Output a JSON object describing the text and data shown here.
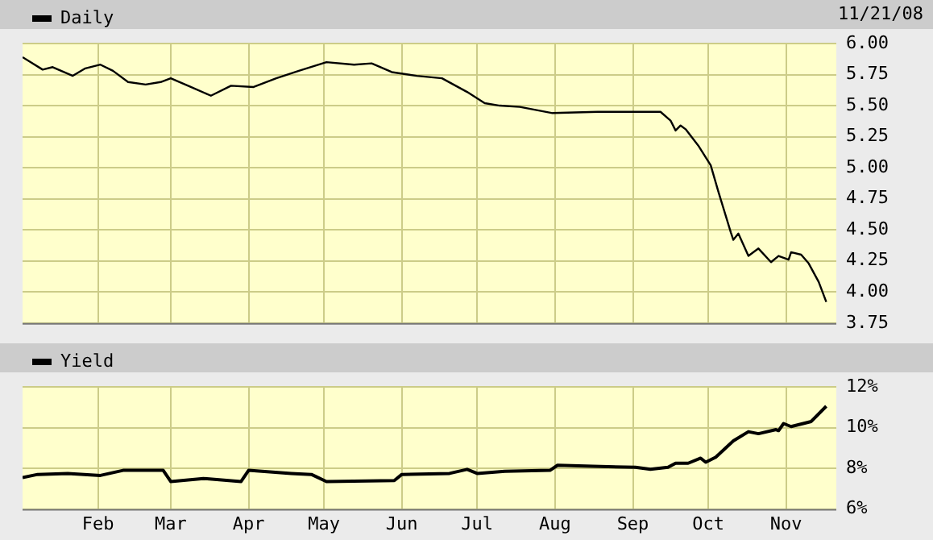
{
  "chart_data": [
    {
      "type": "line",
      "legend": "top left",
      "grid": true,
      "marker": "none",
      "line_style": "solid",
      "tick_labels": "y",
      "annotations": [
        "11/21/08"
      ],
      "xlim": [
        "--01-02",
        "--11-21"
      ],
      "xticks": [
        {
          "value": "--02-01",
          "label": null
        },
        {
          "value": "--03-01",
          "label": null
        },
        {
          "value": "--04-01",
          "label": null
        },
        {
          "value": "--05-01",
          "label": null
        },
        {
          "value": "--06-01",
          "label": null
        },
        {
          "value": "--07-01",
          "label": null
        },
        {
          "value": "--08-01",
          "label": null
        },
        {
          "value": "--09-01",
          "label": null
        },
        {
          "value": "--10-01",
          "label": null
        },
        {
          "value": "--11-01",
          "label": null
        }
      ],
      "ylim": [
        3.75,
        6
      ],
      "yticks": [
        {
          "value": 3.75,
          "label": "3.75"
        },
        {
          "value": 4,
          "label": "4.00"
        },
        {
          "value": 4.25,
          "label": "4.25"
        },
        {
          "value": 4.5,
          "label": "4.50"
        },
        {
          "value": 4.75,
          "label": "4.75"
        },
        {
          "value": 5,
          "label": "5.00"
        },
        {
          "value": 5.25,
          "label": "5.25"
        },
        {
          "value": 5.5,
          "label": "5.50"
        },
        {
          "value": 5.75,
          "label": "5.75"
        },
        {
          "value": 6,
          "label": "6.00"
        }
      ],
      "x": [
        "--01-02",
        "--01-10",
        "--01-14",
        "--01-22",
        "--01-27",
        "--02-02",
        "--02-07",
        "--02-13",
        "--02-20",
        "--02-26",
        "--03-01",
        "--03-09",
        "--03-17",
        "--03-25",
        "--04-03",
        "--04-12",
        "--04-21",
        "--05-02",
        "--05-13",
        "--05-20",
        "--05-28",
        "--06-07",
        "--06-17",
        "--06-27",
        "--07-04",
        "--07-10",
        "--07-18",
        "--07-31",
        "--08-18",
        "--09-01",
        "--09-12",
        "--09-16",
        "--09-18",
        "--09-20",
        "--09-22",
        "--09-27",
        "--10-02",
        "--10-05",
        "--10-10",
        "--10-11",
        "--10-13",
        "--10-17",
        "--10-21",
        "--10-26",
        "--10-29",
        "--11-02",
        "--11-03",
        "--11-07",
        "--11-10",
        "--11-14",
        "--11-17"
      ],
      "series": [
        {
          "name": "Daily",
          "color": "#000000",
          "values": [
            5.89,
            5.79,
            5.81,
            5.74,
            5.8,
            5.83,
            5.78,
            5.69,
            5.67,
            5.69,
            5.72,
            5.65,
            5.58,
            5.66,
            5.65,
            5.72,
            5.78,
            5.85,
            5.83,
            5.84,
            5.77,
            5.74,
            5.72,
            5.61,
            5.52,
            5.5,
            5.49,
            5.44,
            5.45,
            5.45,
            5.45,
            5.38,
            5.3,
            5.34,
            5.31,
            5.18,
            5.02,
            4.81,
            4.48,
            4.42,
            4.47,
            4.29,
            4.35,
            4.24,
            4.29,
            4.26,
            4.32,
            4.3,
            4.23,
            4.08,
            3.92
          ]
        }
      ]
    },
    {
      "type": "line",
      "legend": "top left",
      "grid": true,
      "marker": "none",
      "line_style": "solid",
      "xlim": [
        "--01-02",
        "--11-21"
      ],
      "xticks": [
        {
          "value": "--02-01",
          "label": "Feb"
        },
        {
          "value": "--03-01",
          "label": "Mar"
        },
        {
          "value": "--04-01",
          "label": "Apr"
        },
        {
          "value": "--05-01",
          "label": "May"
        },
        {
          "value": "--06-01",
          "label": "Jun"
        },
        {
          "value": "--07-01",
          "label": "Jul"
        },
        {
          "value": "--08-01",
          "label": "Aug"
        },
        {
          "value": "--09-01",
          "label": "Sep"
        },
        {
          "value": "--10-01",
          "label": "Oct"
        },
        {
          "value": "--11-01",
          "label": "Nov"
        }
      ],
      "ylim": [
        6,
        12
      ],
      "yticks": [
        {
          "value": 6,
          "label": "6%"
        },
        {
          "value": 8,
          "label": "8%"
        },
        {
          "value": 10,
          "label": "10%"
        },
        {
          "value": 12,
          "label": "12%"
        }
      ],
      "x": [
        "--01-02",
        "--01-08",
        "--01-20",
        "--02-02",
        "--02-11",
        "--02-27",
        "--03-01",
        "--03-14",
        "--03-29",
        "--04-01",
        "--04-18",
        "--04-26",
        "--05-02",
        "--05-29",
        "--06-01",
        "--06-20",
        "--06-27",
        "--07-01",
        "--07-12",
        "--07-30",
        "--08-02",
        "--08-16",
        "--09-02",
        "--09-08",
        "--09-15",
        "--09-18",
        "--09-23",
        "--09-28",
        "--09-30",
        "--10-04",
        "--10-11",
        "--10-17",
        "--10-21",
        "--10-28",
        "--10-29",
        "--10-31",
        "--11-03",
        "--11-11",
        "--11-17"
      ],
      "series": [
        {
          "name": "Yield",
          "color": "#000000",
          "values": [
            7.55,
            7.7,
            7.75,
            7.65,
            7.9,
            7.9,
            7.35,
            7.5,
            7.35,
            7.9,
            7.75,
            7.7,
            7.35,
            7.4,
            7.7,
            7.75,
            7.95,
            7.75,
            7.85,
            7.9,
            8.15,
            8.1,
            8.05,
            7.95,
            8.05,
            8.25,
            8.25,
            8.5,
            8.3,
            8.55,
            9.35,
            9.8,
            9.7,
            9.9,
            9.85,
            10.2,
            10.05,
            10.3,
            11.05
          ]
        }
      ]
    }
  ]
}
